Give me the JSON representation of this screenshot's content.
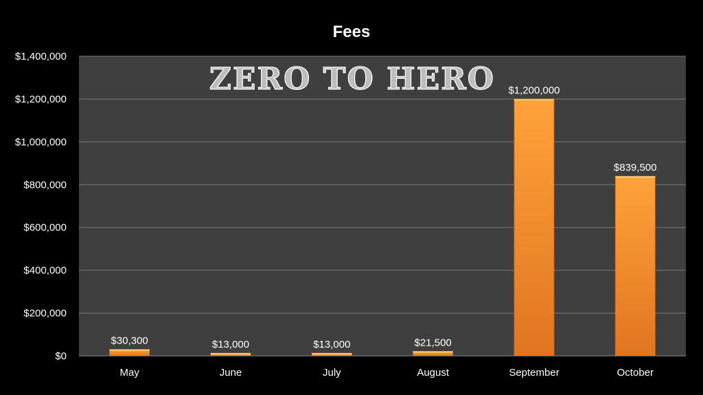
{
  "chart_data": {
    "type": "bar",
    "title": "Fees",
    "categories": [
      "May",
      "June",
      "July",
      "August",
      "September",
      "October"
    ],
    "values": [
      30300,
      13000,
      13000,
      21500,
      1200000,
      839500
    ],
    "data_labels": [
      "$30,300",
      "$13,000",
      "$13,000",
      "$21,500",
      "$1,200,000",
      "$839,500"
    ],
    "yticks": [
      "$0",
      "$200,000",
      "$400,000",
      "$600,000",
      "$800,000",
      "$1,000,000",
      "$1,200,000",
      "$1,400,000"
    ],
    "ylim": [
      0,
      1400000
    ],
    "grid": true,
    "legend": "none",
    "watermark": "ZERO TO HERO",
    "colors": {
      "background": "#000000",
      "plot_area": "#3f3f3f",
      "gridline": "#7a7a7a",
      "bar_light": "#ffa23a",
      "bar_dark": "#e07520",
      "text": "#ffffff"
    }
  }
}
